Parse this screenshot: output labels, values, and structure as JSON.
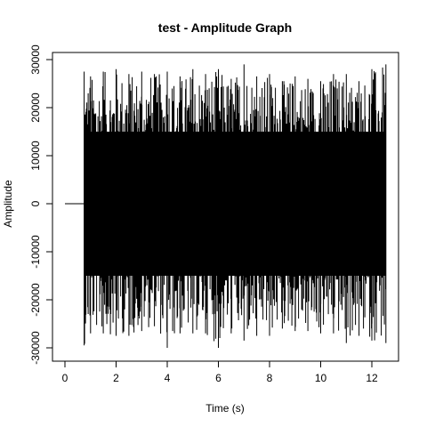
{
  "chart_data": {
    "type": "line",
    "title": "test - Amplitude Graph",
    "xlabel": "Time (s)",
    "ylabel": "Amplitude",
    "xlim": [
      0,
      12.6
    ],
    "ylim": [
      -30000,
      30000
    ],
    "x_ticks": [
      "0",
      "2",
      "4",
      "6",
      "8",
      "10",
      "12"
    ],
    "y_ticks": [
      "-30000",
      "-20000",
      "-10000",
      "0",
      "10000",
      "20000",
      "30000"
    ],
    "grid": false,
    "legend": "none",
    "series": [
      {
        "values_description_free": true,
        "silence": {
          "x": [
            0,
            0.75
          ],
          "y": [
            0,
            0
          ]
        },
        "signal_start": 0.75,
        "signal_end": 12.55,
        "envelope": {
          "x": [
            0.75,
            1,
            1.5,
            2,
            2.5,
            3,
            3.5,
            4,
            4.5,
            5,
            5.5,
            6,
            6.5,
            7,
            7.5,
            8,
            8.5,
            9,
            9.5,
            10,
            10.5,
            11,
            11.5,
            12,
            12.55
          ],
          "max": [
            27500,
            26500,
            27500,
            28000,
            27000,
            27500,
            27000,
            27500,
            26500,
            28000,
            27000,
            28000,
            26000,
            29000,
            26500,
            27000,
            25500,
            26500,
            26000,
            25500,
            27000,
            27000,
            25500,
            28000,
            29000
          ],
          "min": [
            -29500,
            -27000,
            -27000,
            -27500,
            -27500,
            -26500,
            -25500,
            -30000,
            -27000,
            -27000,
            -27000,
            -30000,
            -27000,
            -28500,
            -27500,
            -27500,
            -26000,
            -26500,
            -26500,
            -27000,
            -27000,
            -29000,
            -27500,
            -28500,
            -29000
          ]
        },
        "color": "#000000"
      }
    ]
  }
}
